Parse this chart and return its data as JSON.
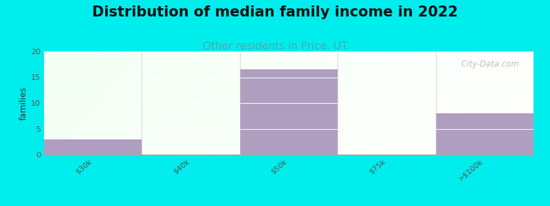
{
  "title": "Distribution of median family income in 2022",
  "subtitle": "Other residents in Price, UT",
  "categories": [
    "$30k",
    "$40k",
    "$50k",
    "$75k",
    ">$100k"
  ],
  "values": [
    3,
    0,
    16.5,
    0,
    8
  ],
  "bar_color": "#b09ec0",
  "ylabel": "families",
  "ylim": [
    0,
    20
  ],
  "yticks": [
    0,
    5,
    10,
    15,
    20
  ],
  "background_outer": "#00eded",
  "watermark": " City-Data.com",
  "title_fontsize": 15,
  "subtitle_fontsize": 11,
  "subtitle_color": "#4aabab",
  "tick_label_fontsize": 8,
  "ylabel_fontsize": 9
}
